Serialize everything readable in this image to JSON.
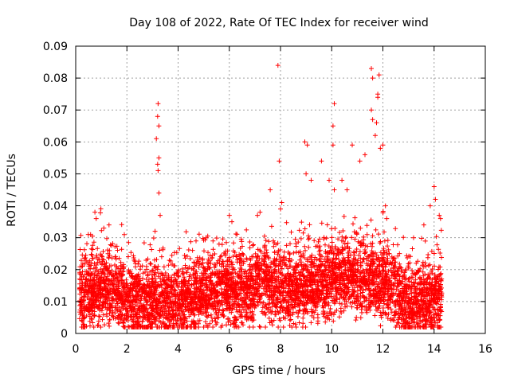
{
  "chart_data": {
    "type": "scatter",
    "title": "Day 108 of 2022, Rate Of TEC Index for receiver wind",
    "xlabel": "GPS time / hours",
    "ylabel": "ROTI / TECUs",
    "xlim": [
      0,
      16
    ],
    "ylim": [
      0,
      0.09
    ],
    "xticks": [
      "0",
      "2",
      "4",
      "6",
      "8",
      "10",
      "12",
      "14",
      "16"
    ],
    "yticks": [
      "0",
      "0.01",
      "0.02",
      "0.03",
      "0.04",
      "0.05",
      "0.06",
      "0.07",
      "0.08",
      "0.09"
    ],
    "grid": true,
    "marker": "plus",
    "color": "#ff0000",
    "x_data_range": [
      0.15,
      14.3
    ],
    "points": [
      [
        0.75,
        0.038
      ],
      [
        0.8,
        0.036
      ],
      [
        1.1,
        0.033
      ],
      [
        1.3,
        0.034
      ],
      [
        1.9,
        0.031
      ],
      [
        3.15,
        0.061
      ],
      [
        3.2,
        0.068
      ],
      [
        3.22,
        0.072
      ],
      [
        3.25,
        0.065
      ],
      [
        3.2,
        0.053
      ],
      [
        3.25,
        0.055
      ],
      [
        3.22,
        0.051
      ],
      [
        3.25,
        0.044
      ],
      [
        3.3,
        0.037
      ],
      [
        3.1,
        0.032
      ],
      [
        4.7,
        0.029
      ],
      [
        5.6,
        0.028
      ],
      [
        6.0,
        0.037
      ],
      [
        6.1,
        0.035
      ],
      [
        7.1,
        0.037
      ],
      [
        7.2,
        0.038
      ],
      [
        7.6,
        0.045
      ],
      [
        7.9,
        0.084
      ],
      [
        7.95,
        0.054
      ],
      [
        8.05,
        0.041
      ],
      [
        8.0,
        0.039
      ],
      [
        8.95,
        0.06
      ],
      [
        9.05,
        0.059
      ],
      [
        9.0,
        0.05
      ],
      [
        9.2,
        0.048
      ],
      [
        9.6,
        0.054
      ],
      [
        9.9,
        0.048
      ],
      [
        10.05,
        0.065
      ],
      [
        10.1,
        0.072
      ],
      [
        10.05,
        0.059
      ],
      [
        10.1,
        0.045
      ],
      [
        10.4,
        0.048
      ],
      [
        10.6,
        0.045
      ],
      [
        10.8,
        0.059
      ],
      [
        11.1,
        0.054
      ],
      [
        11.3,
        0.056
      ],
      [
        11.55,
        0.083
      ],
      [
        11.6,
        0.08
      ],
      [
        11.55,
        0.07
      ],
      [
        11.6,
        0.067
      ],
      [
        11.7,
        0.062
      ],
      [
        11.8,
        0.075
      ],
      [
        11.85,
        0.081
      ],
      [
        11.8,
        0.074
      ],
      [
        11.75,
        0.066
      ],
      [
        11.9,
        0.058
      ],
      [
        12.0,
        0.059
      ],
      [
        12.1,
        0.04
      ],
      [
        12.15,
        0.036
      ],
      [
        13.2,
        0.03
      ],
      [
        13.6,
        0.034
      ],
      [
        13.85,
        0.04
      ],
      [
        14.0,
        0.046
      ],
      [
        14.05,
        0.042
      ],
      [
        14.2,
        0.037
      ],
      [
        14.25,
        0.036
      ]
    ]
  }
}
